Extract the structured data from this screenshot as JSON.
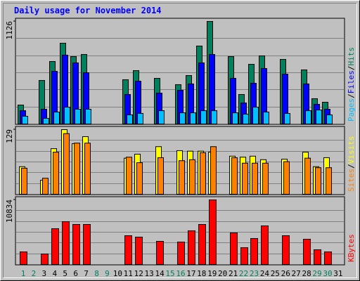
{
  "chart_data": [
    {
      "type": "bar",
      "title": "Daily usage for November 2014",
      "ylim": [
        0,
        1126
      ],
      "yticks": [
        1126
      ],
      "legend_separator": "/",
      "series": [
        {
          "name": "Pages",
          "color": "#00C0FF",
          "values": [
            85,
            0,
            62,
            131,
            185,
            162,
            162,
            0,
            0,
            0,
            100,
            116,
            0,
            146,
            0,
            123,
            123,
            146,
            146,
            0,
            123,
            108,
            185,
            131,
            0,
            116,
            0,
            146,
            154,
            100,
            0
          ]
        },
        {
          "name": "Files",
          "color": "#0000FF",
          "values": [
            146,
            0,
            162,
            578,
            756,
            671,
            563,
            0,
            0,
            0,
            324,
            470,
            0,
            339,
            0,
            370,
            440,
            671,
            763,
            0,
            501,
            231,
            447,
            609,
            0,
            547,
            0,
            440,
            216,
            162,
            0
          ]
        },
        {
          "name": "Hits",
          "color": "#00805C",
          "values": [
            208,
            0,
            478,
            686,
            887,
            740,
            763,
            0,
            0,
            0,
            486,
            586,
            0,
            501,
            0,
            432,
            532,
            856,
            1126,
            0,
            740,
            324,
            655,
            748,
            0,
            709,
            0,
            594,
            278,
            239,
            0
          ]
        }
      ]
    },
    {
      "type": "bar",
      "ylim": [
        0,
        129
      ],
      "yticks": [
        129
      ],
      "legend_separator": "/",
      "series": [
        {
          "name": "Sites",
          "color": "#FF8000",
          "values": [
            52,
            0,
            32,
            84,
            121,
            102,
            102,
            0,
            0,
            0,
            74,
            63,
            0,
            73,
            0,
            67,
            69,
            83,
            95,
            0,
            73,
            62,
            62,
            62,
            0,
            65,
            0,
            72,
            53,
            53,
            0
          ]
        },
        {
          "name": "Visits",
          "color": "#FFFF00",
          "values": [
            55,
            0,
            28,
            91,
            129,
            101,
            115,
            0,
            0,
            0,
            72,
            80,
            0,
            95,
            0,
            87,
            86,
            86,
            84,
            0,
            76,
            74,
            76,
            69,
            0,
            70,
            0,
            84,
            55,
            73,
            0
          ]
        }
      ]
    },
    {
      "type": "bar",
      "ylim": [
        0,
        10834
      ],
      "yticks": [
        10834
      ],
      "categories": [
        "1",
        "2",
        "3",
        "4",
        "5",
        "6",
        "7",
        "8",
        "9",
        "10",
        "11",
        "12",
        "13",
        "14",
        "15",
        "16",
        "17",
        "18",
        "19",
        "20",
        "21",
        "22",
        "23",
        "24",
        "25",
        "26",
        "27",
        "28",
        "29",
        "30",
        "31"
      ],
      "highlighted": [
        0,
        1,
        7,
        8,
        14,
        15,
        21,
        22,
        28,
        29
      ],
      "highlight_color": "#00805C",
      "series": [
        {
          "name": "KBytes",
          "color": "#FF0000",
          "values": [
            2120,
            0,
            1767,
            6007,
            7185,
            6713,
            6713,
            0,
            0,
            0,
            4829,
            4594,
            0,
            3886,
            0,
            3769,
            5654,
            6713,
            10834,
            0,
            5300,
            2827,
            4358,
            6478,
            0,
            4829,
            0,
            4240,
            2473,
            2120,
            0
          ]
        }
      ]
    }
  ]
}
